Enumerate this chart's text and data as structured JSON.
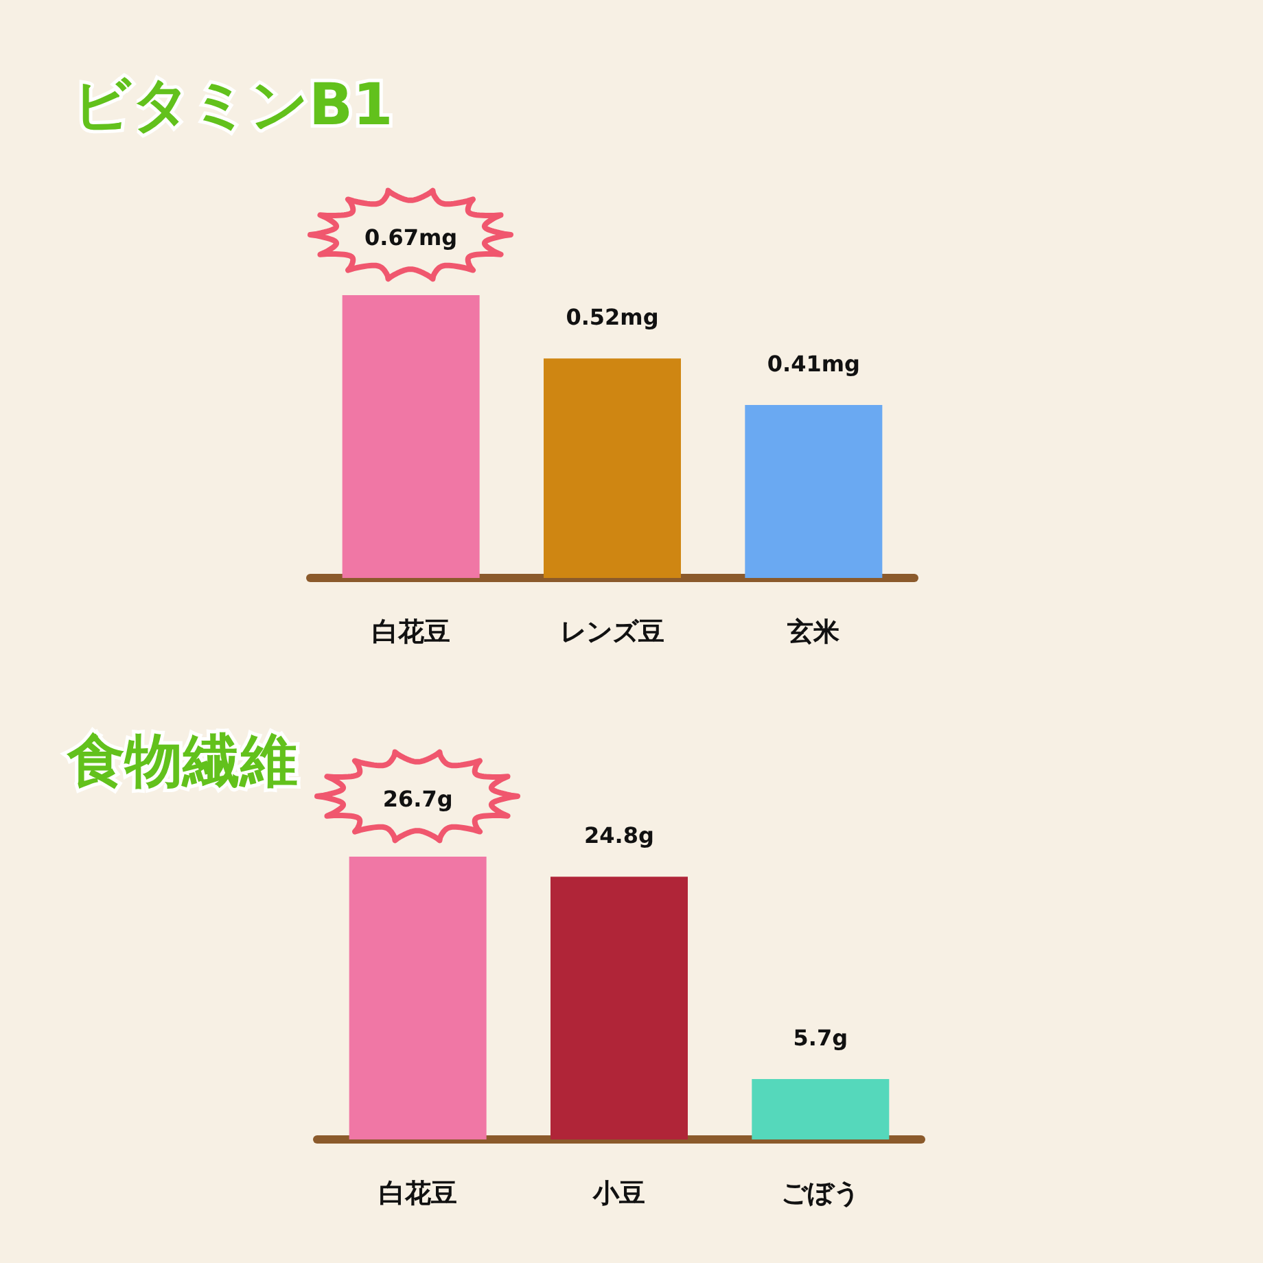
{
  "chart_data": [
    {
      "type": "bar",
      "title": "ビタミンB1",
      "categories": [
        "白花豆",
        "レンズ豆",
        "玄米"
      ],
      "values": [
        0.67,
        0.52,
        0.41
      ],
      "colors": [
        "#f077a5",
        "#cf8612",
        "#6aa9f2"
      ],
      "value_labels": [
        "0.67mg",
        "0.52mg",
        "0.41mg"
      ]
    },
    {
      "type": "bar",
      "title": "食物繊維",
      "categories": [
        "白花豆",
        "小豆",
        "ごぼう"
      ],
      "values": [
        26.7,
        24.8,
        5.7
      ],
      "colors": [
        "#f077a5",
        "#b02538",
        "#55d8bb"
      ],
      "value_labels": [
        "26.7g",
        "24.8g",
        "5.7g"
      ]
    }
  ]
}
